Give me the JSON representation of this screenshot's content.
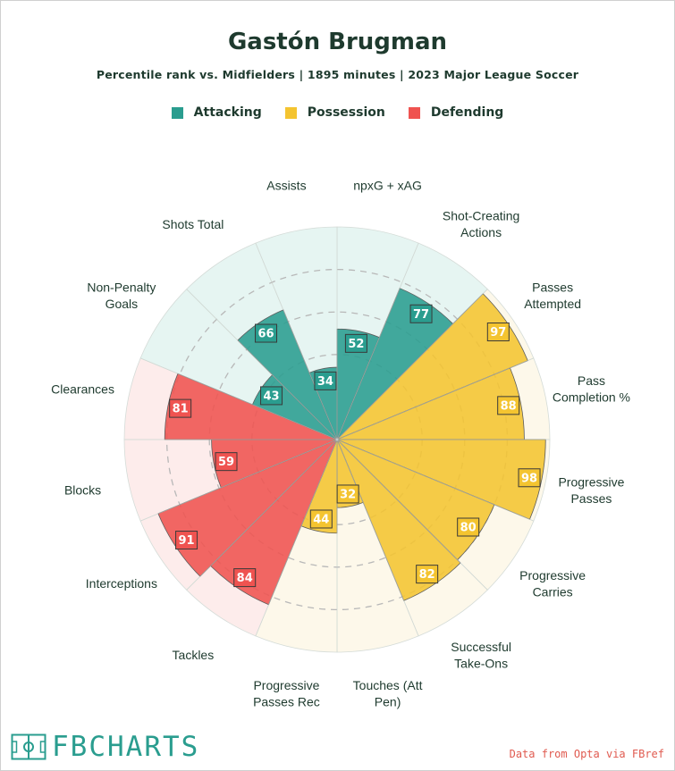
{
  "title": "Gastón Brugman",
  "subtitle": "Percentile rank vs. Midfielders | 1895 minutes | 2023 Major League Soccer",
  "legend": [
    {
      "label": "Attacking",
      "color": "#2a9d8f"
    },
    {
      "label": "Possession",
      "color": "#f4c430"
    },
    {
      "label": "Defending",
      "color": "#ef5350"
    }
  ],
  "source": "Data from Opta via FBref",
  "logo_text": "FBCHARTS",
  "chart_data": {
    "type": "radar",
    "range": [
      0,
      100
    ],
    "grid": true,
    "categories": [
      {
        "label": "npxG + xAG",
        "value": 52,
        "group": "Attacking"
      },
      {
        "label": "Shot-Creating Actions",
        "value": 77,
        "group": "Attacking"
      },
      {
        "label": "Passes Attempted",
        "value": 97,
        "group": "Possession"
      },
      {
        "label": "Pass Completion %",
        "value": 88,
        "group": "Possession"
      },
      {
        "label": "Progressive Passes",
        "value": 98,
        "group": "Possession"
      },
      {
        "label": "Progressive Carries",
        "value": 80,
        "group": "Possession"
      },
      {
        "label": "Successful Take-Ons",
        "value": 82,
        "group": "Possession"
      },
      {
        "label": "Touches (Att Pen)",
        "value": 32,
        "group": "Possession"
      },
      {
        "label": "Progressive Passes Rec",
        "value": 44,
        "group": "Possession"
      },
      {
        "label": "Tackles",
        "value": 84,
        "group": "Defending"
      },
      {
        "label": "Interceptions",
        "value": 91,
        "group": "Defending"
      },
      {
        "label": "Blocks",
        "value": 59,
        "group": "Defending"
      },
      {
        "label": "Clearances",
        "value": 81,
        "group": "Defending"
      },
      {
        "label": "Non-Penalty Goals",
        "value": 43,
        "group": "Attacking"
      },
      {
        "label": "Shots Total",
        "value": 66,
        "group": "Attacking"
      },
      {
        "label": "Assists",
        "value": 34,
        "group": "Attacking"
      }
    ],
    "group_colors": {
      "Attacking": "#2a9d8f",
      "Possession": "#f4c430",
      "Defending": "#ef5350"
    },
    "group_bg_colors": {
      "Attacking": "#e6f5f2",
      "Possession": "#fdf8ea",
      "Defending": "#fdeceb"
    }
  }
}
